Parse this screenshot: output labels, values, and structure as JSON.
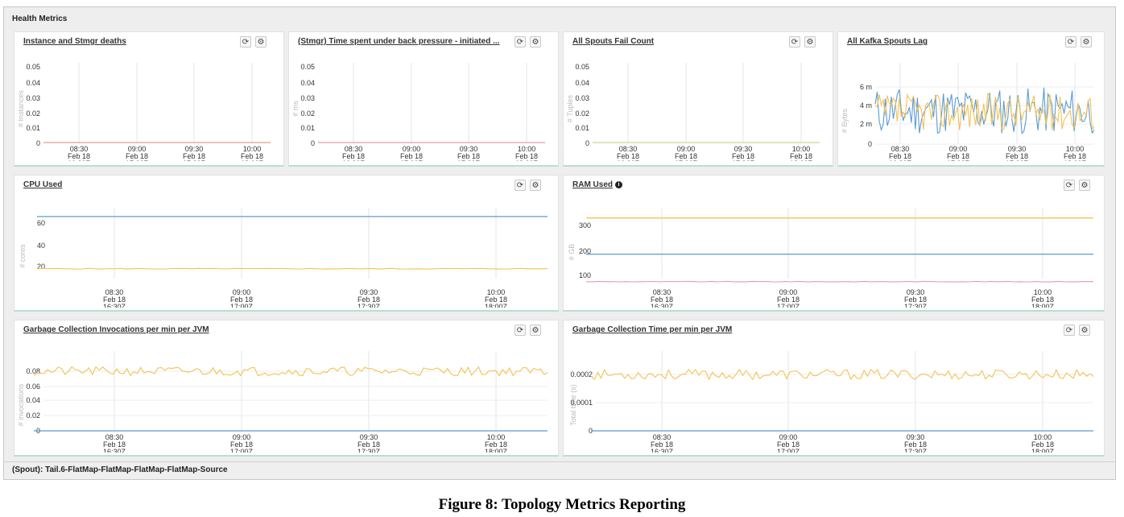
{
  "section_title": "Health Metrics",
  "footer_text": "(Spout): Tail.6-FlatMap-FlatMap-FlatMap-FlatMap-Source",
  "caption": "Figure 8: Topology Metrics Reporting",
  "icons": {
    "refresh": "refresh-icon",
    "settings": "gear-icon",
    "info": "info-icon"
  },
  "colors": {
    "blue": "#5b9bd5",
    "orange": "#f5c253",
    "pink": "#e89aa9",
    "green": "#9acb8b"
  },
  "x_ticks": [
    [
      "08:30",
      "Feb 18",
      "16:30Z"
    ],
    [
      "09:00",
      "Feb 18",
      "17:00Z"
    ],
    [
      "09:30",
      "Feb 18",
      "17:30Z"
    ],
    [
      "10:00",
      "Feb 18",
      "18:00Z"
    ]
  ],
  "panels": {
    "instance_deaths": {
      "title": "Instance and Stmgr deaths",
      "y_ticks": [
        "0.05",
        "0.04",
        "0.03",
        "0.02",
        "0.01",
        "0"
      ],
      "y_label": "# Instances"
    },
    "back_pressure": {
      "title": "(Stmgr) Time spent under back pressure - initiated ...",
      "y_ticks": [
        "0.05",
        "0.04",
        "0.03",
        "0.02",
        "0.01",
        "0"
      ],
      "y_label": "# ms"
    },
    "spouts_fail": {
      "title": "All Spouts Fail Count",
      "y_ticks": [
        "0.05",
        "0.04",
        "0.03",
        "0.02",
        "0.01",
        "0"
      ],
      "y_label": "# Tuples"
    },
    "kafka_lag": {
      "title": "All Kafka Spouts Lag",
      "y_ticks": [
        "6 m",
        "4 m",
        "2 m",
        "0"
      ],
      "y_label": "# Bytes"
    },
    "cpu": {
      "title": "CPU Used",
      "y_ticks": [
        "60",
        "40",
        "20"
      ],
      "y_label": "# cores"
    },
    "ram": {
      "title": "RAM Used",
      "y_ticks": [
        "300",
        "200",
        "100"
      ],
      "y_label": "# GB"
    },
    "gc_invocations": {
      "title": "Garbage Collection Invocations per min per JVM",
      "y_ticks": [
        "0.08",
        "0.06",
        "0.04",
        "0.02",
        "0"
      ],
      "y_label": "# invocations"
    },
    "gc_time": {
      "title": "Garbage Collection Time per min per JVM",
      "y_ticks": [
        "0.0002",
        "0.0001",
        "0"
      ],
      "y_label": "Total time (s)"
    }
  },
  "chart_data": [
    {
      "type": "line",
      "title": "Instance and Stmgr deaths",
      "x": [
        "08:30",
        "09:00",
        "09:30",
        "10:00"
      ],
      "ylim": [
        0,
        0.05
      ],
      "series": [
        {
          "values": [
            0,
            0,
            0,
            0
          ]
        }
      ]
    },
    {
      "type": "line",
      "title": "(Stmgr) Time spent under back pressure - initiated ...",
      "x": [
        "08:30",
        "09:00",
        "09:30",
        "10:00"
      ],
      "ylim": [
        0,
        0.05
      ],
      "series": [
        {
          "values": [
            0,
            0,
            0,
            0
          ]
        }
      ]
    },
    {
      "type": "line",
      "title": "All Spouts Fail Count",
      "x": [
        "08:30",
        "09:00",
        "09:30",
        "10:00"
      ],
      "ylim": [
        0,
        0.05
      ],
      "series": [
        {
          "values": [
            0,
            0,
            0,
            0
          ]
        }
      ]
    },
    {
      "type": "line",
      "title": "All Kafka Spouts Lag",
      "x": [
        "08:30",
        "09:00",
        "09:30",
        "10:00"
      ],
      "ylim": [
        0,
        7
      ],
      "series": [
        {
          "values": [
            3.5,
            4.2,
            3.8,
            4.0
          ]
        },
        {
          "values": [
            3.2,
            3.6,
            3.4,
            3.7
          ]
        }
      ]
    },
    {
      "type": "line",
      "title": "CPU Used",
      "x": [
        "08:30",
        "09:00",
        "09:30",
        "10:00"
      ],
      "ylim": [
        0,
        70
      ],
      "series": [
        {
          "values": [
            66,
            66,
            66,
            66
          ]
        },
        {
          "values": [
            18,
            18,
            18,
            18
          ]
        }
      ]
    },
    {
      "type": "line",
      "title": "RAM Used",
      "x": [
        "08:30",
        "09:00",
        "09:30",
        "10:00"
      ],
      "ylim": [
        0,
        350
      ],
      "series": [
        {
          "values": [
            330,
            330,
            330,
            330
          ]
        },
        {
          "values": [
            185,
            185,
            185,
            185
          ]
        },
        {
          "values": [
            75,
            75,
            75,
            75
          ]
        }
      ]
    },
    {
      "type": "line",
      "title": "Garbage Collection Invocations per min per JVM",
      "x": [
        "08:30",
        "09:00",
        "09:30",
        "10:00"
      ],
      "ylim": [
        0,
        0.09
      ],
      "series": [
        {
          "values": [
            0.08,
            0.08,
            0.08,
            0.08
          ]
        },
        {
          "values": [
            0,
            0,
            0,
            0
          ]
        }
      ]
    },
    {
      "type": "line",
      "title": "Garbage Collection Time per min per JVM",
      "x": [
        "08:30",
        "09:00",
        "09:30",
        "10:00"
      ],
      "ylim": [
        0,
        0.00025
      ],
      "series": [
        {
          "values": [
            0.0002,
            0.0002,
            0.0002,
            0.0002
          ]
        },
        {
          "values": [
            0,
            0,
            0,
            0
          ]
        }
      ]
    }
  ]
}
